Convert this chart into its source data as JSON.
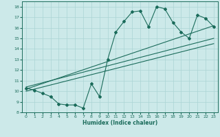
{
  "xlabel": "Humidex (Indice chaleur)",
  "ylabel": "",
  "xlim": [
    -0.5,
    23.5
  ],
  "ylim": [
    8.0,
    18.5
  ],
  "yticks": [
    8,
    9,
    10,
    11,
    12,
    13,
    14,
    15,
    16,
    17,
    18
  ],
  "xticks": [
    0,
    1,
    2,
    3,
    4,
    5,
    6,
    7,
    8,
    9,
    10,
    11,
    12,
    13,
    14,
    15,
    16,
    17,
    18,
    19,
    20,
    21,
    22,
    23
  ],
  "bg_color": "#cce9e9",
  "line_color": "#1a6b5a",
  "grid_color": "#aad4d4",
  "line1_x": [
    0,
    1,
    2,
    3,
    4,
    5,
    6,
    7,
    8,
    9,
    10,
    11,
    12,
    13,
    14,
    15,
    16,
    17,
    18,
    19,
    20,
    21,
    22,
    23
  ],
  "line1_y": [
    10.3,
    10.1,
    9.8,
    9.5,
    8.8,
    8.7,
    8.7,
    8.4,
    10.7,
    9.5,
    13.0,
    15.6,
    16.6,
    17.5,
    17.6,
    16.1,
    18.0,
    17.8,
    16.5,
    15.6,
    15.0,
    17.2,
    16.9,
    16.1
  ],
  "line2_x": [
    0,
    23
  ],
  "line2_y": [
    10.2,
    16.2
  ],
  "line3_x": [
    0,
    23
  ],
  "line3_y": [
    10.0,
    14.5
  ],
  "line4_x": [
    0,
    23
  ],
  "line4_y": [
    10.4,
    15.0
  ]
}
